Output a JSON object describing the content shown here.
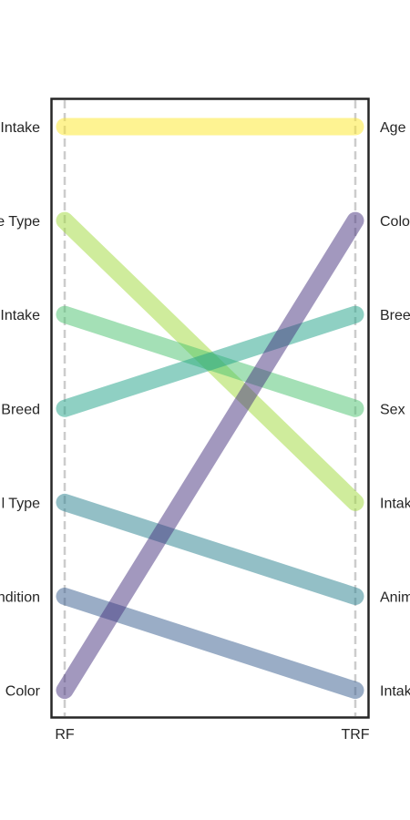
{
  "chart_data": {
    "type": "slope",
    "title": "",
    "xlabel": "",
    "ylabel": "",
    "columns": [
      "RF",
      "TRF"
    ],
    "left_labels": [
      "Intake",
      "e Type",
      "Intake",
      "Breed",
      "l Type",
      "ndition",
      "Color"
    ],
    "right_labels": [
      "Age",
      "Colo",
      "Bree",
      "Sex",
      "Intak",
      "Anim",
      "Intak"
    ],
    "series": [
      {
        "color": "#fde725",
        "values": [
          1,
          1
        ]
      },
      {
        "color": "#a0da39",
        "values": [
          2,
          5
        ]
      },
      {
        "color": "#4ac16d",
        "values": [
          3,
          4
        ]
      },
      {
        "color": "#1fa187",
        "values": [
          4,
          3
        ]
      },
      {
        "color": "#277f8e",
        "values": [
          5,
          6
        ]
      },
      {
        "color": "#365c8d",
        "values": [
          6,
          7
        ]
      },
      {
        "color": "#46327e",
        "values": [
          7,
          2
        ]
      }
    ]
  }
}
